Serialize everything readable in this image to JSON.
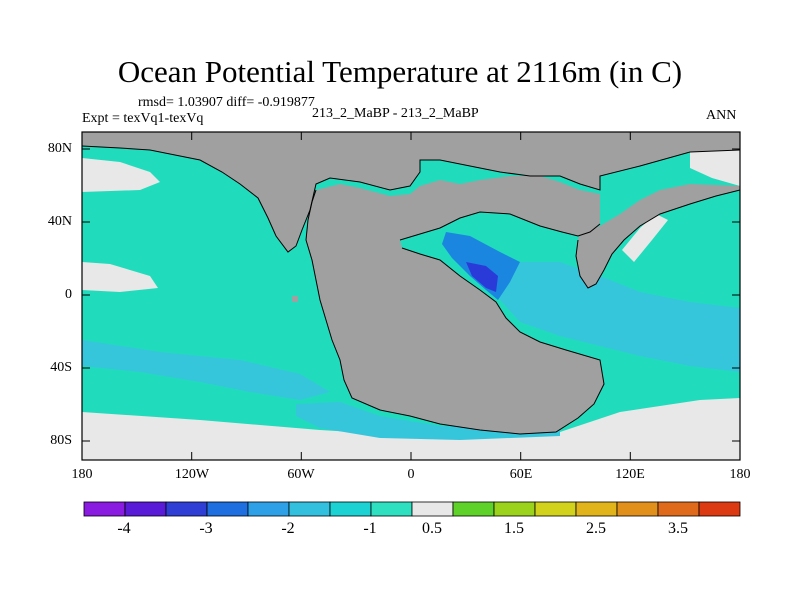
{
  "title": "Ocean Potential Temperature at 2116m (in C)",
  "stats": "rmsd= 1.03907 diff= -0.919877",
  "expt": "Expt = texVq1-texVq",
  "case": "213_2_MaBP - 213_2_MaBP",
  "season": "ANN",
  "lat_labels": [
    "80N",
    "40N",
    "0",
    "40S",
    "80S"
  ],
  "lon_labels": [
    "180",
    "120W",
    "60W",
    "0",
    "60E",
    "120E",
    "180"
  ],
  "colorbar": {
    "labels": [
      "-4",
      "-3",
      "-2",
      "-1",
      "0.5",
      "1.5",
      "2.5",
      "3.5"
    ],
    "colors": [
      "#8a1be0",
      "#5a1bd8",
      "#2f3fd6",
      "#1f6fe0",
      "#2ea0e8",
      "#33c0de",
      "#1cd2d2",
      "#2ee0c0",
      "#e8e8e8",
      "#5fd22a",
      "#9ad21c",
      "#d2d21c",
      "#e2b41c",
      "#e2901c",
      "#e06a1c",
      "#dc3a12"
    ]
  },
  "map_colors": {
    "land": "#a0a0a0",
    "ocean_main": "#20dcbc",
    "ocean_cool": "#36c6dc",
    "ocean_cold": "#1a86e0",
    "ocean_coldest": "#2a3ad8",
    "near_zero": "#e8e8e8"
  }
}
